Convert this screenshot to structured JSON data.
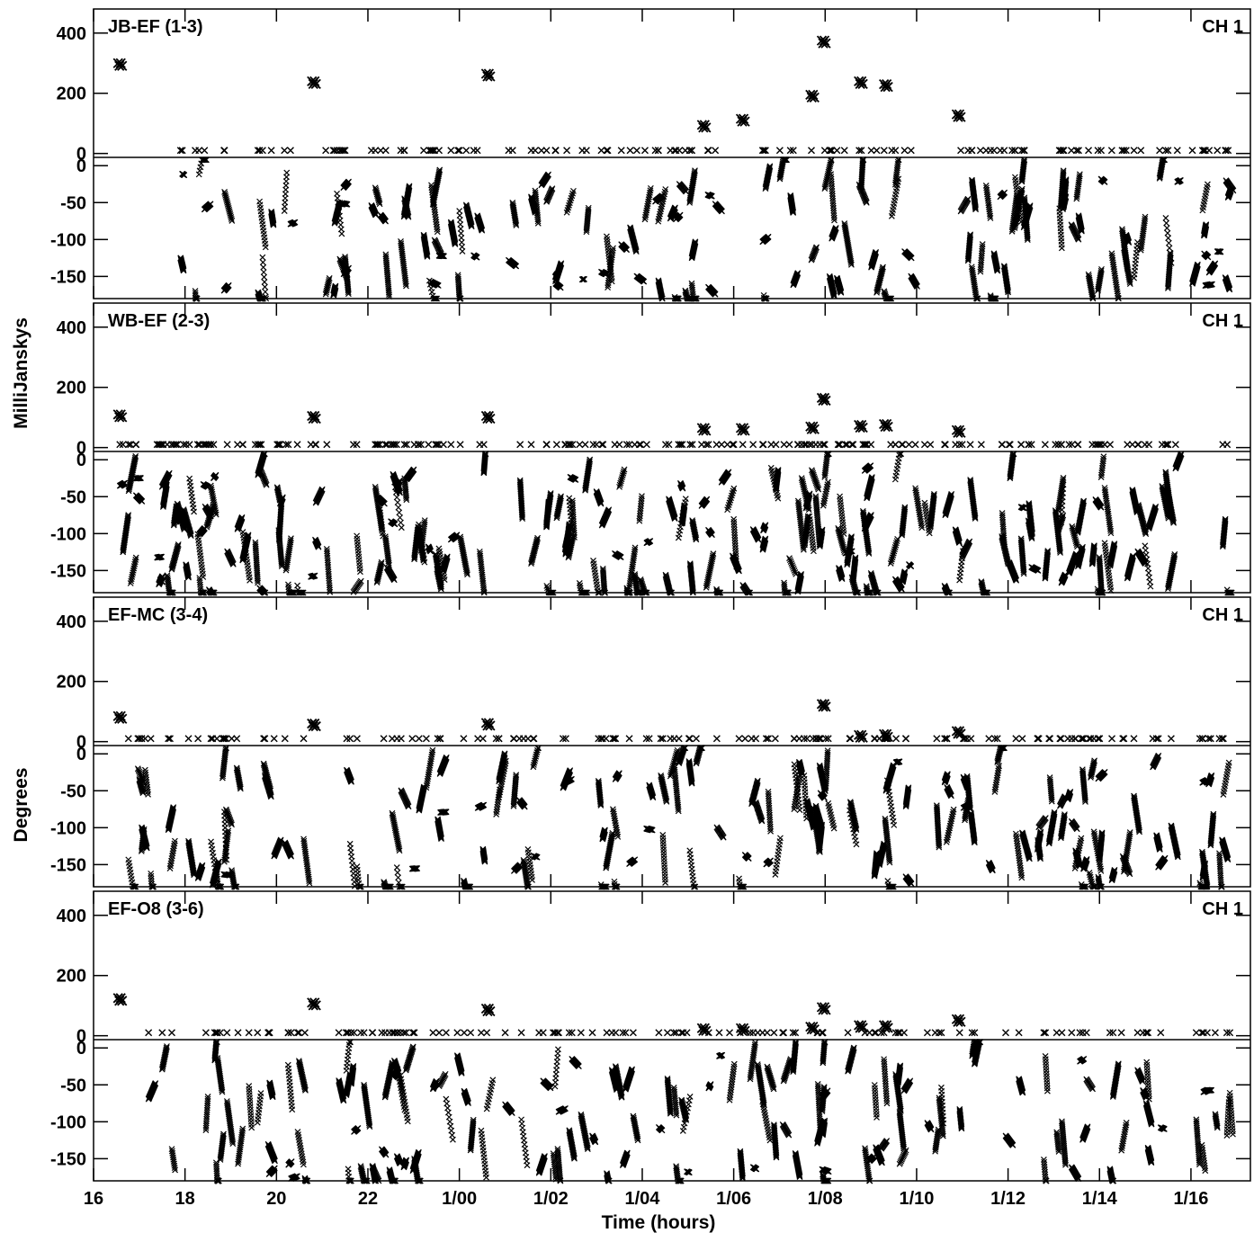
{
  "figure": {
    "y_title_top": "MilliJanskys",
    "y_title_bottom": "Degrees",
    "x_title": "Time (hours)"
  },
  "colors": {
    "marker": "#000000",
    "axes": "#000000",
    "background": "#ffffff"
  },
  "chart_data": {
    "type": "scatter",
    "marker": "x",
    "grid": false,
    "legend": "none",
    "shared_x": {
      "label": "Time (hours)",
      "unit": "hours",
      "range": [
        16.0,
        41.3
      ],
      "ticks": [
        16,
        18,
        20,
        22,
        24,
        26,
        28,
        30,
        32,
        34,
        36,
        38,
        40
      ],
      "tick_labels": [
        "16",
        "18",
        "20",
        "22",
        "1/00",
        "1/02",
        "1/04",
        "1/06",
        "1/08",
        "1/10",
        "1/12",
        "1/14",
        "1/16"
      ]
    },
    "amplitude_axis": {
      "label": "MilliJanskys",
      "range": [
        -10,
        480
      ],
      "ticks": [
        0,
        200,
        400
      ],
      "tick_labels": [
        "0",
        "200",
        "400"
      ]
    },
    "phase_axis": {
      "label": "Degrees",
      "range": [
        -180,
        10
      ],
      "ticks": [
        0,
        -50,
        -100,
        -150
      ],
      "tick_labels": [
        "0",
        "-50",
        "-100",
        "-150"
      ]
    },
    "panels": [
      {
        "baseline": "JB-EF (1-3)",
        "channel": "CH 1",
        "amplitude_points": [
          {
            "t": 16.58,
            "v": 300
          },
          {
            "t": 20.82,
            "v": 240
          },
          {
            "t": 24.63,
            "v": 265
          },
          {
            "t": 29.35,
            "v": 95
          },
          {
            "t": 30.2,
            "v": 115
          },
          {
            "t": 31.72,
            "v": 195
          },
          {
            "t": 31.97,
            "v": 375
          },
          {
            "t": 32.78,
            "v": 240
          },
          {
            "t": 33.33,
            "v": 230
          },
          {
            "t": 34.92,
            "v": 130
          }
        ],
        "amplitude_baseline_mjy": 10,
        "phase_density": 0.55,
        "phase_seed": 11
      },
      {
        "baseline": "WB-EF (2-3)",
        "channel": "CH 1",
        "amplitude_points": [
          {
            "t": 16.58,
            "v": 110
          },
          {
            "t": 20.82,
            "v": 105
          },
          {
            "t": 24.63,
            "v": 105
          },
          {
            "t": 29.35,
            "v": 65
          },
          {
            "t": 30.2,
            "v": 65
          },
          {
            "t": 31.72,
            "v": 70
          },
          {
            "t": 31.97,
            "v": 165
          },
          {
            "t": 32.78,
            "v": 75
          },
          {
            "t": 33.33,
            "v": 78
          },
          {
            "t": 34.92,
            "v": 58
          }
        ],
        "amplitude_baseline_mjy": 10,
        "phase_density": 0.78,
        "phase_seed": 23
      },
      {
        "baseline": "EF-MC (3-4)",
        "channel": "CH 1",
        "amplitude_points": [
          {
            "t": 16.58,
            "v": 85
          },
          {
            "t": 20.82,
            "v": 60
          },
          {
            "t": 24.63,
            "v": 62
          },
          {
            "t": 31.97,
            "v": 125
          },
          {
            "t": 32.78,
            "v": 22
          },
          {
            "t": 33.33,
            "v": 25
          },
          {
            "t": 34.92,
            "v": 35
          }
        ],
        "amplitude_baseline_mjy": 10,
        "phase_density": 0.6,
        "phase_seed": 37
      },
      {
        "baseline": "EF-O8 (3-6)",
        "channel": "CH 1",
        "amplitude_points": [
          {
            "t": 16.58,
            "v": 125
          },
          {
            "t": 20.82,
            "v": 110
          },
          {
            "t": 24.63,
            "v": 90
          },
          {
            "t": 29.35,
            "v": 25
          },
          {
            "t": 30.2,
            "v": 25
          },
          {
            "t": 31.72,
            "v": 30
          },
          {
            "t": 31.97,
            "v": 95
          },
          {
            "t": 32.78,
            "v": 35
          },
          {
            "t": 33.33,
            "v": 35
          },
          {
            "t": 34.92,
            "v": 55
          }
        ],
        "amplitude_baseline_mjy": 10,
        "phase_density": 0.55,
        "phase_seed": 53
      }
    ]
  }
}
